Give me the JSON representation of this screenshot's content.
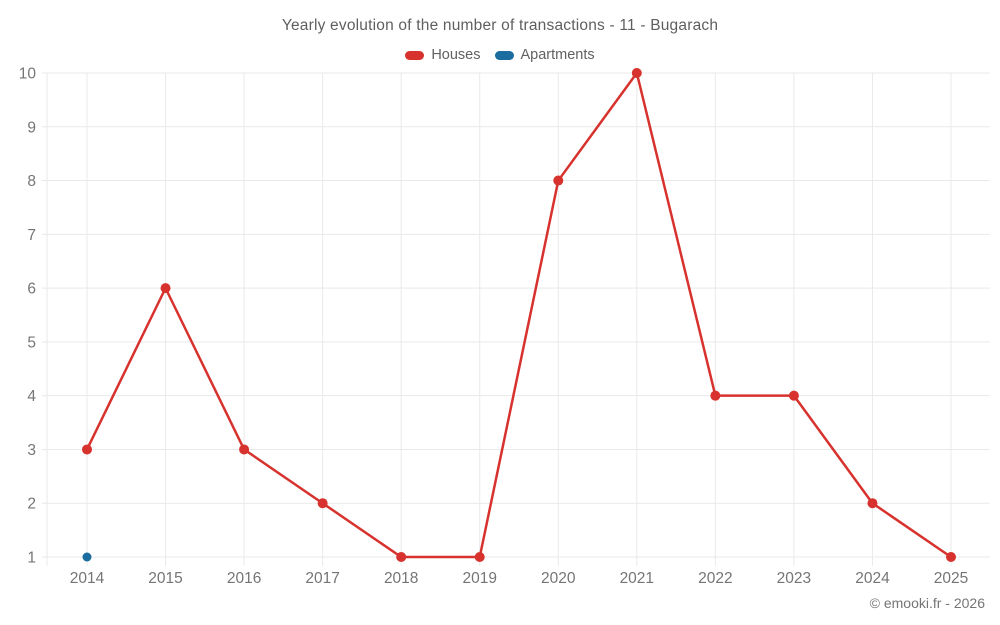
{
  "title": "Yearly evolution of the number of transactions - 11 - Bugarach",
  "footer": "© emooki.fr - 2026",
  "legend": [
    {
      "label": "Houses",
      "color": "#d7322d"
    },
    {
      "label": "Apartments",
      "color": "#1a6d9e"
    }
  ],
  "chart_data": {
    "type": "line",
    "title": "Yearly evolution of the number of transactions - 11 - Bugarach",
    "categories": [
      "2014",
      "2015",
      "2016",
      "2017",
      "2018",
      "2019",
      "2020",
      "2021",
      "2022",
      "2023",
      "2024",
      "2025"
    ],
    "series": [
      {
        "name": "Houses",
        "color": "#d7322d",
        "values": [
          3,
          6,
          3,
          2,
          1,
          1,
          8,
          10,
          4,
          4,
          2,
          1
        ]
      },
      {
        "name": "Apartments",
        "color": "#1a6d9e",
        "values": [
          1,
          null,
          null,
          null,
          null,
          null,
          null,
          null,
          null,
          null,
          null,
          null
        ]
      }
    ],
    "xlabel": "",
    "ylabel": "",
    "ylim": [
      1,
      10
    ],
    "yticks": [
      1,
      2,
      3,
      4,
      5,
      6,
      7,
      8,
      9,
      10
    ],
    "grid": true,
    "legend_position": "top",
    "gridline_color": "#e9e9e9",
    "tick_label_color": "#757575"
  }
}
